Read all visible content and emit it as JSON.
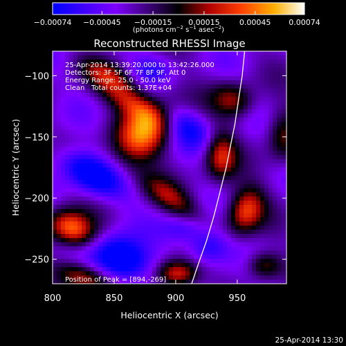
{
  "colors": {
    "background": "#000000",
    "foreground": "#ffffff",
    "limb_curve": "#ffffff"
  },
  "chart_data": {
    "type": "heatmap",
    "title": "Reconstructed RHESSI Image",
    "xlabel": "Heliocentric X (arcsec)",
    "ylabel": "Heliocentric Y (arcsec)",
    "xlim": [
      800,
      990
    ],
    "ylim": [
      -270,
      -80
    ],
    "x_ticks": [
      800,
      850,
      900,
      950
    ],
    "x_tick_labels": [
      "800",
      "850",
      "900",
      "950"
    ],
    "y_ticks": [
      -250,
      -200,
      -150,
      -100
    ],
    "y_tick_labels": [
      "−250",
      "−200",
      "−150",
      "−100"
    ],
    "grid": false,
    "colorbar": {
      "position": "top",
      "min": -0.00074,
      "max": 0.00074,
      "ticks": [
        -0.00074,
        -0.00045,
        -0.00015,
        0.00015,
        0.00045,
        0.00074
      ],
      "tick_labels": [
        "−0.00074",
        "−0.00045",
        "−0.00015",
        "0.00015",
        "0.00045",
        "0.00074"
      ],
      "unit_html": "(photons cm<tspan baseline-shift='super' font-size='7'>−2</tspan> s<tspan baseline-shift='super' font-size='7'>−1</tspan> asec<tspan baseline-shift='super' font-size='7'>−2</tspan>)"
    },
    "annotations": {
      "time_range": "25-Apr-2014 13:39:20.000 to 13:42:26.000",
      "detectors": "Detectors: 3F 5F 6F 7F 8F 9F, Att 0",
      "energy_range": "Energy Range: 25.0 - 50.0 keV",
      "clean": "Clean",
      "total_counts": "Total counts: 1.37E+04",
      "peak_position": "Position of Peak = [894,-269]"
    },
    "peak": {
      "x": 894,
      "y": -269
    },
    "limb_curve": {
      "points": [
        [
          913,
          -270
        ],
        [
          918,
          -255
        ],
        [
          925,
          -235
        ],
        [
          931,
          -215
        ],
        [
          936,
          -195
        ],
        [
          941,
          -175
        ],
        [
          945,
          -155
        ],
        [
          948,
          -140
        ],
        [
          951,
          -120
        ],
        [
          954,
          -100
        ],
        [
          956,
          -80
        ]
      ]
    },
    "blobs_note": "Intensity structure approximated with Gaussian components",
    "blobs": [
      {
        "x": 815,
        "y": -225,
        "amp": 1.0,
        "sx": 14,
        "sy": 10,
        "rot": -25
      },
      {
        "x": 825,
        "y": -265,
        "amp": 0.7,
        "sx": 18,
        "sy": 8,
        "rot": -20
      },
      {
        "x": 875,
        "y": -145,
        "amp": 1.0,
        "sx": 14,
        "sy": 22,
        "rot": -40
      },
      {
        "x": 860,
        "y": -120,
        "amp": 0.6,
        "sx": 20,
        "sy": 8,
        "rot": -30
      },
      {
        "x": 845,
        "y": -100,
        "amp": 0.5,
        "sx": 18,
        "sy": 7,
        "rot": -25
      },
      {
        "x": 895,
        "y": -200,
        "amp": 0.55,
        "sx": 20,
        "sy": 8,
        "rot": -35
      },
      {
        "x": 900,
        "y": -262,
        "amp": 0.9,
        "sx": 12,
        "sy": 8,
        "rot": 0
      },
      {
        "x": 935,
        "y": -165,
        "amp": 0.75,
        "sx": 9,
        "sy": 14,
        "rot": 0
      },
      {
        "x": 945,
        "y": -120,
        "amp": 0.6,
        "sx": 12,
        "sy": 10,
        "rot": -20
      },
      {
        "x": 955,
        "y": -210,
        "amp": 0.85,
        "sx": 10,
        "sy": 14,
        "rot": -20
      },
      {
        "x": 970,
        "y": -255,
        "amp": 0.6,
        "sx": 10,
        "sy": 8,
        "rot": 0
      },
      {
        "x": 985,
        "y": -150,
        "amp": 0.5,
        "sx": 9,
        "sy": 16,
        "rot": 0
      },
      {
        "x": 830,
        "y": -180,
        "amp": -0.8,
        "sx": 20,
        "sy": 10,
        "rot": -30
      },
      {
        "x": 855,
        "y": -250,
        "amp": -1.0,
        "sx": 16,
        "sy": 12,
        "rot": -20
      },
      {
        "x": 905,
        "y": -140,
        "amp": -0.6,
        "sx": 18,
        "sy": 10,
        "rot": -35
      },
      {
        "x": 925,
        "y": -240,
        "amp": -0.55,
        "sx": 12,
        "sy": 10,
        "rot": 0
      },
      {
        "x": 905,
        "y": -225,
        "amp": -0.35,
        "sx": 12,
        "sy": 8,
        "rot": 0
      },
      {
        "x": 880,
        "y": -95,
        "amp": -0.35,
        "sx": 12,
        "sy": 8,
        "rot": 0
      }
    ]
  },
  "footer": {
    "timestamp": "25-Apr-2014 13:30"
  }
}
